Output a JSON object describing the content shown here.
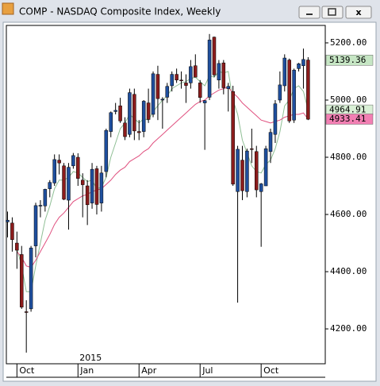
{
  "chart_data": {
    "type": "candlestick",
    "title": "COMP - NASDAQ Composite Index, Weekly",
    "categories": [
      null,
      null,
      "Oct",
      null,
      null,
      null,
      null,
      null,
      null,
      null,
      null,
      null,
      null,
      null,
      null,
      "Jan",
      null,
      null,
      null,
      null,
      null,
      null,
      null,
      null,
      null,
      null,
      null,
      null,
      "Apr",
      null,
      null,
      null,
      null,
      null,
      null,
      null,
      null,
      null,
      null,
      null,
      null,
      "Jul",
      null,
      null,
      null,
      null,
      null,
      null,
      null,
      null,
      null,
      null,
      null,
      null,
      "Oct",
      null,
      null,
      null,
      null,
      null,
      null,
      null,
      null,
      null,
      null
    ],
    "year_label": {
      "text": "2015",
      "index": 15
    },
    "open": [
      4574,
      4570,
      4500,
      4460,
      4260,
      4270,
      4490,
      4630,
      4630,
      4690,
      4710,
      4790,
      4770,
      4650,
      4770,
      4800,
      4720,
      4700,
      4640,
      4760,
      4640,
      4750,
      4890,
      4960,
      4980,
      4920,
      4880,
      5020,
      4890,
      4890,
      4990,
      4950,
      5090,
      5000,
      5010,
      5050,
      5090,
      5070,
      5060,
      5060,
      5120,
      5060,
      4990,
      5010,
      5220,
      5070,
      5130,
      5040,
      5030,
      4680,
      4790,
      4680,
      4830,
      4820,
      4680,
      4700,
      4820,
      4880,
      5000,
      5050,
      5140,
      4930,
      5110,
      5120,
      5140
    ],
    "high": [
      4610,
      4590,
      4540,
      4490,
      4300,
      4490,
      4641,
      4650,
      4690,
      4720,
      4810,
      4810,
      4780,
      4780,
      4815,
      4814,
      4744,
      4720,
      4780,
      4770,
      4770,
      4900,
      4960,
      4990,
      5008,
      4940,
      5040,
      5040,
      4930,
      5000,
      5040,
      5100,
      5120,
      5010,
      5060,
      5100,
      5110,
      5100,
      5090,
      5140,
      5160,
      5070,
      5000,
      5231,
      5222,
      5140,
      5140,
      5060,
      5050,
      4840,
      4840,
      4830,
      4900,
      4840,
      4710,
      4840,
      4900,
      5000,
      5100,
      5160,
      5145,
      5110,
      5130,
      5180,
      5150
    ],
    "low": [
      4520,
      4470,
      4410,
      4270,
      4117,
      4260,
      4450,
      4590,
      4610,
      4660,
      4700,
      4740,
      4650,
      4547,
      4760,
      4700,
      4590,
      4563,
      4620,
      4600,
      4610,
      4730,
      4870,
      4950,
      4920,
      4860,
      4870,
      4860,
      4860,
      4870,
      4920,
      4940,
      4930,
      4900,
      4990,
      5030,
      5060,
      5040,
      4990,
      5040,
      5080,
      4990,
      4826,
      5000,
      5080,
      5040,
      5020,
      4960,
      4700,
      4292,
      4650,
      4660,
      4780,
      4660,
      4487,
      4700,
      4780,
      4850,
      4990,
      5030,
      4920,
      4920,
      5100,
      5040,
      4930
    ],
    "close": [
      4580,
      4512,
      4475,
      4276,
      4258,
      4483,
      4631,
      4632,
      4688,
      4712,
      4792,
      4780,
      4653,
      4765,
      4806,
      4726,
      4704,
      4634,
      4758,
      4635,
      4745,
      4894,
      4956,
      4964,
      4927,
      4872,
      5026,
      4892,
      4886,
      4996,
      4932,
      5092,
      5005,
      5003,
      5048,
      5090,
      5070,
      5068,
      5051,
      5117,
      5080,
      5009,
      4998,
      5210,
      5088,
      5128,
      5043,
      5048,
      4706,
      4828,
      4683,
      4822,
      4828,
      4686,
      4707,
      4830,
      4887,
      4987,
      5053,
      5147,
      4927,
      5105,
      5127,
      5142,
      4933
    ],
    "up_color": "#1f4f9e",
    "down_color": "#8b1c1c",
    "series": [
      {
        "color": "#8fbf95",
        "values": [
          null,
          null,
          4480,
          4420,
          4330,
          4330,
          4420,
          4500,
          4580,
          4630,
          4690,
          4720,
          4720,
          4730,
          4750,
          4745,
          4730,
          4715,
          4720,
          4690,
          4695,
          4730,
          4800,
          4850,
          4900,
          4920,
          4950,
          4935,
          4920,
          4935,
          4930,
          4960,
          4980,
          5000,
          5015,
          5040,
          5050,
          5060,
          5065,
          5075,
          5080,
          5065,
          5050,
          5085,
          5080,
          5100,
          5095,
          5100,
          5000,
          4950,
          4860,
          4815,
          4770,
          4750,
          4745,
          4775,
          4790,
          4830,
          4890,
          4980,
          5000,
          5040,
          5050,
          5030,
          4964.91
        ]
      },
      {
        "color": "#e0507f",
        "values": [
          null,
          null,
          4470,
          4450,
          4420,
          4415,
          4440,
          4470,
          4500,
          4530,
          4565,
          4590,
          4605,
          4625,
          4645,
          4655,
          4665,
          4670,
          4680,
          4685,
          4690,
          4705,
          4720,
          4740,
          4755,
          4765,
          4785,
          4795,
          4805,
          4820,
          4830,
          4850,
          4865,
          4880,
          4895,
          4910,
          4925,
          4940,
          4955,
          4970,
          4985,
          4995,
          5000,
          5015,
          5025,
          5035,
          5040,
          5045,
          5025,
          5010,
          4990,
          4975,
          4960,
          4945,
          4930,
          4925,
          4920,
          4925,
          4930,
          4940,
          4945,
          4950,
          4950,
          4955,
          4933.41
        ]
      }
    ],
    "price_labels": [
      {
        "value": 5139.36,
        "color": "#c6e6c4"
      },
      {
        "value": 4964.91,
        "color": "#d9f0d6"
      },
      {
        "value": 4933.41,
        "color": "#f27fb3"
      }
    ],
    "ylim": [
      4078,
      5261
    ],
    "yticks": [
      {
        "value": 4200,
        "label": "4200.00"
      },
      {
        "value": 4400,
        "label": "4400.00"
      },
      {
        "value": 4600,
        "label": "4600.00"
      },
      {
        "value": 4800,
        "label": "4800.00"
      },
      {
        "value": 5000,
        "label": "5000.00"
      },
      {
        "value": 5200,
        "label": "5200.00"
      }
    ]
  }
}
